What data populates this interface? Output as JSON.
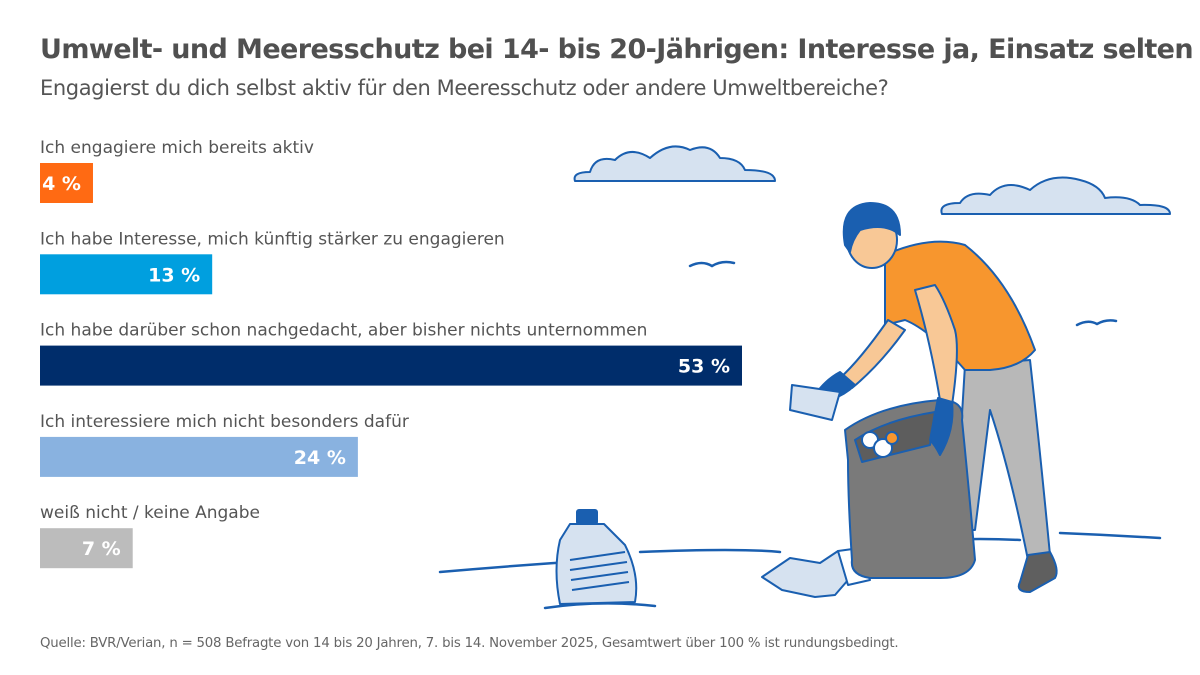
{
  "header": {
    "title": "Umwelt- und Meeresschutz bei 14- bis 20-Jährigen: Interesse ja, Einsatz selten",
    "subtitle": "Engagierst du dich selbst aktiv für den Meeresschutz oder andere Umweltbereiche?"
  },
  "chart_data": {
    "type": "bar",
    "orientation": "horizontal",
    "categories": [
      "Ich engagiere mich bereits aktiv",
      "Ich habe Interesse, mich künftig stärker zu engagieren",
      "Ich habe darüber schon nachgedacht, aber bisher nichts unternommen",
      "Ich interessiere mich nicht besonders dafür",
      "weiß nicht / keine Angabe"
    ],
    "values": [
      4,
      13,
      53,
      24,
      7
    ],
    "value_labels": [
      "4 %",
      "13 %",
      "53 %",
      "24 %",
      "7 %"
    ],
    "colors": [
      "#ff6a13",
      "#009fdf",
      "#002d6b",
      "#89b2e0",
      "#bcbcbc"
    ],
    "unit": "%",
    "grid": false,
    "axes_visible": false
  },
  "footer": {
    "source": "Quelle: BVR/Verian, n = 508 Befragte von 14 bis 20 Jahren, 7. bis 14. November 2025, Gesamtwert über 100 % ist rundungsbedingt."
  },
  "illustration": {
    "description_icon": "person-collecting-litter-illustration",
    "colors": {
      "outline": "#1a5fb0",
      "shirt": "#f7962e",
      "skin": "#f8c896",
      "pants": "#b8b8b8",
      "bag": "#7a7a7a",
      "cloud": "#d6e2f0"
    }
  }
}
